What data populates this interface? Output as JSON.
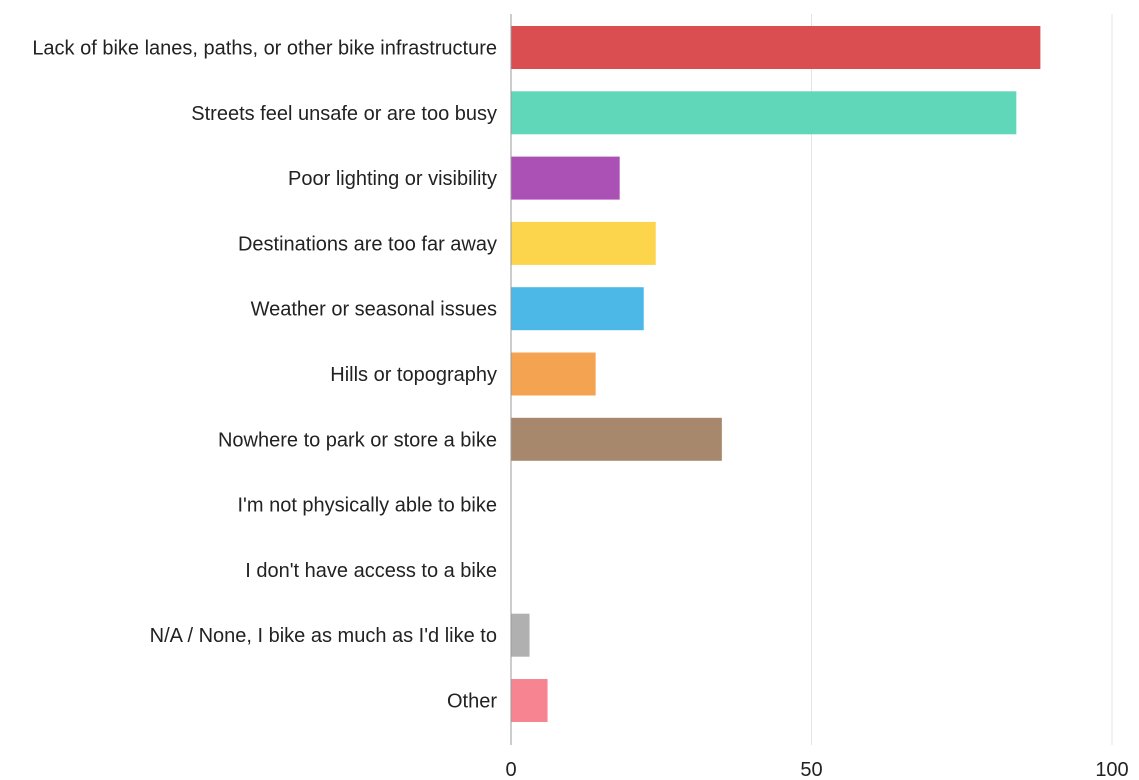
{
  "chart_data": {
    "type": "bar",
    "orientation": "horizontal",
    "categories": [
      "Lack of bike lanes, paths, or other bike infrastructure",
      "Streets feel unsafe or are too busy",
      "Poor lighting or visibility",
      "Destinations are too far away",
      "Weather or seasonal issues",
      "Hills or topography",
      "Nowhere to park or store a bike",
      "I'm not physically able to bike",
      "I don't have access to a bike",
      "N/A / None, I bike as much as I'd like to",
      "Other"
    ],
    "values": [
      88,
      84,
      18,
      24,
      22,
      14,
      35,
      0,
      0,
      3,
      6
    ],
    "colors": [
      "#d9474a",
      "#5cd6b8",
      "#a84bb3",
      "#fcd447",
      "#45b6e6",
      "#f4a04a",
      "#a58468",
      "#cccccc",
      "#cccccc",
      "#adadad",
      "#f6808d"
    ],
    "xlim": [
      0,
      100
    ],
    "xticks": [
      0,
      50,
      100
    ],
    "grid": true,
    "title": "",
    "xlabel": "",
    "ylabel": ""
  }
}
